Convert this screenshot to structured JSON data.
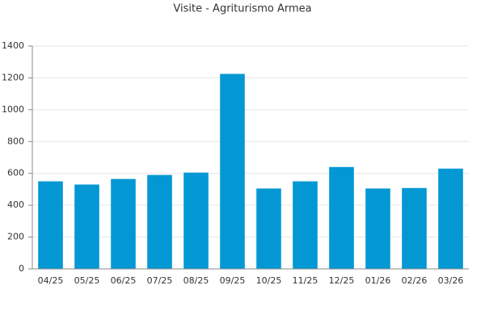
{
  "chart_data": {
    "type": "bar",
    "title": "Visite - Agriturismo Armea",
    "categories": [
      "04/25",
      "05/25",
      "06/25",
      "07/25",
      "08/25",
      "09/25",
      "10/25",
      "11/25",
      "12/25",
      "01/26",
      "02/26",
      "03/26"
    ],
    "values": [
      550,
      530,
      565,
      590,
      605,
      1225,
      505,
      550,
      640,
      505,
      508,
      630
    ],
    "color": "#0398d4",
    "ylim": [
      0,
      1400
    ],
    "yticks": [
      0,
      200,
      400,
      600,
      800,
      1000,
      1200,
      1400
    ],
    "grid": true
  }
}
